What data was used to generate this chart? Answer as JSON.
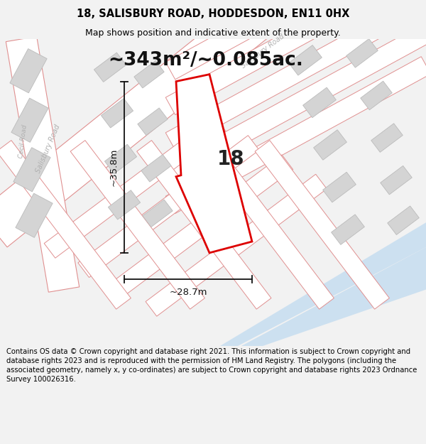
{
  "title_line1": "18, SALISBURY ROAD, HODDESDON, EN11 0HX",
  "title_line2": "Map shows position and indicative extent of the property.",
  "area_text": "~343m²/~0.085ac.",
  "dim_width": "~28.7m",
  "dim_height": "~35.8m",
  "property_number": "18",
  "footer_text": "Contains OS data © Crown copyright and database right 2021. This information is subject to Crown copyright and database rights 2023 and is reproduced with the permission of HM Land Registry. The polygons (including the associated geometry, namely x, y co-ordinates) are subject to Crown copyright and database rights 2023 Ordnance Survey 100026316.",
  "bg_color": "#f2f2f2",
  "map_bg": "#eeeeee",
  "road_fill": "#ffffff",
  "road_stroke": "#e09090",
  "building_fill": "#d4d4d4",
  "building_stroke": "#bbbbbb",
  "water_fill": "#cce0f0",
  "property_stroke": "#dd0000",
  "property_fill": "#ffffff",
  "dim_line_color": "#111111",
  "title_fontsize": 10.5,
  "subtitle_fontsize": 9,
  "area_fontsize": 19,
  "number_fontsize": 20,
  "dim_fontsize": 9.5,
  "footer_fontsize": 7.2,
  "road_label_color": "#b0b0b0",
  "road_label_fontsize": 7
}
